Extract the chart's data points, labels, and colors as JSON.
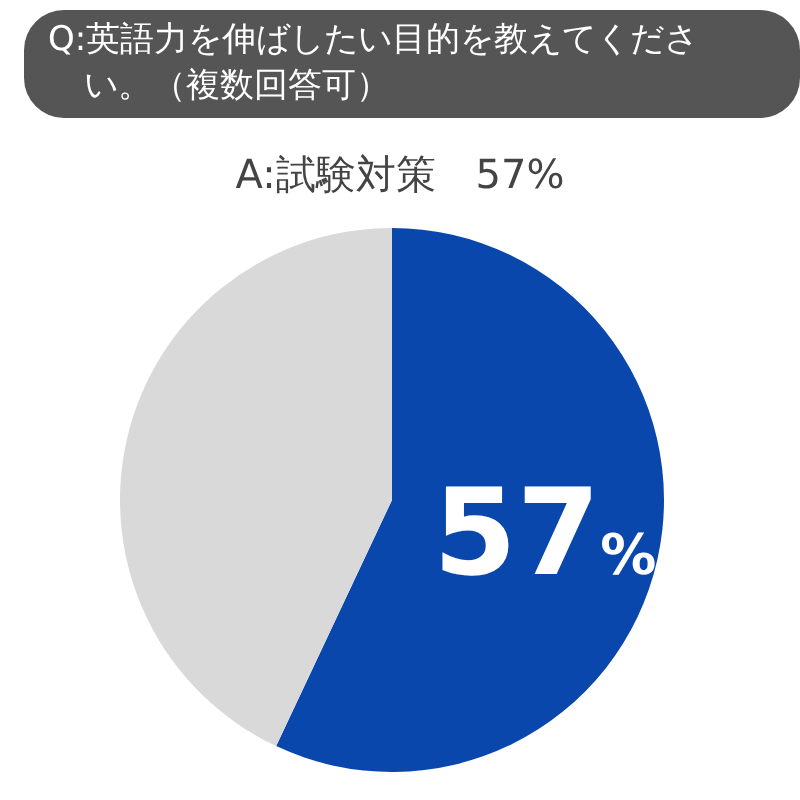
{
  "chart_data": {
    "type": "pie",
    "title": "Q:英語力を伸ばしたい目的を教えてください。（複数回答可）",
    "subtitle": "A:試験対策　57%",
    "categories": [
      null,
      null
    ],
    "values": [
      57,
      43
    ],
    "colors": [
      "#0a47ad",
      "#d9d9d9"
    ],
    "value_labels": [
      "57%",
      null
    ]
  }
}
